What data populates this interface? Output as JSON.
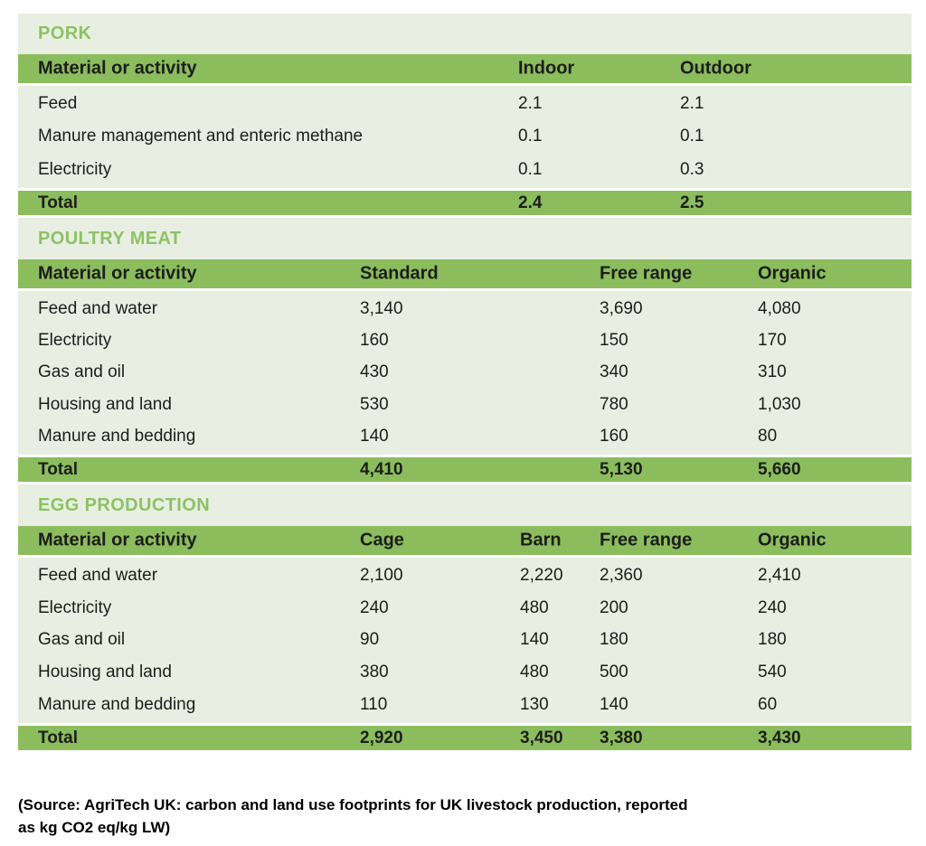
{
  "colors": {
    "bar_green": "#8bbd5d",
    "panel_green": "#e8efe2",
    "title_green": "#8cc264",
    "text_dark": "#1d1d1b",
    "separator_white": "#ffffff"
  },
  "tables": [
    {
      "title": "PORK",
      "headers": [
        "Material or activity",
        "Indoor",
        "Outdoor"
      ],
      "rows": [
        [
          "Feed",
          "2.1",
          "2.1"
        ],
        [
          "Manure management and enteric methane",
          "0.1",
          "0.1"
        ],
        [
          "Electricity",
          "0.1",
          "0.3"
        ]
      ],
      "total": [
        "Total",
        "2.4",
        "2.5"
      ]
    },
    {
      "title": "POULTRY MEAT",
      "headers": [
        "Material or activity",
        "Standard",
        "Free range",
        "Organic"
      ],
      "rows": [
        [
          "Feed and water",
          "3,140",
          "3,690",
          "4,080"
        ],
        [
          "Electricity",
          "160",
          "150",
          "170"
        ],
        [
          "Gas and oil",
          "430",
          "340",
          "310"
        ],
        [
          "Housing and land",
          "530",
          "780",
          "1,030"
        ],
        [
          "Manure and bedding",
          "140",
          "160",
          "80"
        ]
      ],
      "total": [
        "Total",
        "4,410",
        "5,130",
        "5,660"
      ]
    },
    {
      "title": "EGG PRODUCTION",
      "headers": [
        "Material or activity",
        "Cage",
        "Barn",
        "Free range",
        "Organic"
      ],
      "rows": [
        [
          "Feed and water",
          "2,100",
          "2,220",
          "2,360",
          "2,410"
        ],
        [
          "Electricity",
          "240",
          "480",
          "200",
          "240"
        ],
        [
          "Gas and oil",
          "90",
          "140",
          "180",
          "180"
        ],
        [
          "Housing and land",
          "380",
          "480",
          "500",
          "540"
        ],
        [
          "Manure and bedding",
          "110",
          "130",
          "140",
          "60"
        ]
      ],
      "total": [
        "Total",
        "2,920",
        "3,450",
        "3,380",
        "3,430"
      ]
    }
  ],
  "source_note": {
    "line1": "(Source: AgriTech UK: carbon and land use footprints for UK livestock production, reported",
    "line2": "as kg CO2 eq/kg LW)"
  }
}
